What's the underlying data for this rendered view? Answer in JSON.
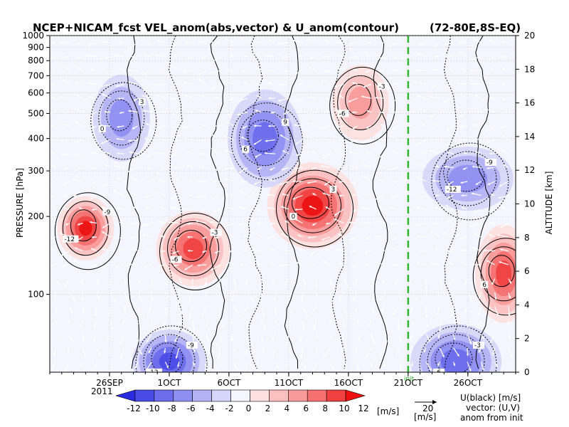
{
  "chart_data": {
    "type": "heatmap",
    "title": "NCEP+NICAM_fcst VEL_anom(abs,vector) & U_anom(contour)",
    "region": "(72-80E,8S-EQ)",
    "ylabel_left": "PRESSURE [hPa]",
    "ylabel_right": "ALTITUDE [km]",
    "y_left_scale": "log",
    "y_left_range": [
      1000,
      50
    ],
    "y_left_ticks": [
      100,
      200,
      300,
      400,
      500,
      600,
      700,
      800,
      900,
      1000
    ],
    "y_right_range": [
      0,
      20
    ],
    "y_right_ticks": [
      0,
      2,
      4,
      6,
      8,
      10,
      12,
      14,
      16,
      18,
      20
    ],
    "x_ticks": [
      "26SEP",
      "1OCT",
      "6OCT",
      "11OCT",
      "16OCT",
      "21OCT",
      "26OCT"
    ],
    "x_year": "2011",
    "x_range": [
      "2011-09-21",
      "2011-10-30"
    ],
    "init_marker": {
      "date": "2011-10-21",
      "label": "init",
      "color": "#22bb22"
    },
    "colorbar": {
      "levels": [
        -12,
        -10,
        -8,
        -6,
        -4,
        -2,
        0,
        2,
        4,
        6,
        8,
        10,
        12
      ],
      "unit": "[m/s]",
      "colors": [
        "#2a2ae0",
        "#4a4ae6",
        "#6c6ced",
        "#8f8ff2",
        "#b3b3f6",
        "#d6d6fa",
        "#f5f5ff",
        "#fde0e0",
        "#fbc0c0",
        "#f89a9a",
        "#f57070",
        "#f04040",
        "#ec1010"
      ]
    },
    "vector_reference": {
      "value": "20",
      "unit": "[m/s]"
    },
    "legend_text": [
      "U(black) [m/s]",
      "vector: (U,V)",
      "anom from init"
    ],
    "contour_labels": [
      "-12",
      "-9",
      "-6",
      "-3",
      "0",
      "3",
      "6",
      "9"
    ],
    "anomaly_features": [
      {
        "name": "upper-positive-early",
        "date": "2011-09-24",
        "pressure": 180,
        "value": 12
      },
      {
        "name": "upper-positive-oct3",
        "date": "2011-10-03",
        "pressure": 150,
        "value": 10
      },
      {
        "name": "upper-positive-oct13",
        "date": "2011-10-13",
        "pressure": 220,
        "value": 12
      },
      {
        "name": "upper-positive-late",
        "date": "2011-10-29",
        "pressure": 120,
        "value": 10
      },
      {
        "name": "upper-negative-top",
        "date": "2011-10-01",
        "pressure": 55,
        "value": -10
      },
      {
        "name": "upper-negative-late",
        "date": "2011-10-25",
        "pressure": 55,
        "value": -8
      },
      {
        "name": "mid-negative-early",
        "date": "2011-09-27",
        "pressure": 480,
        "value": -6
      },
      {
        "name": "mid-negative-oct9",
        "date": "2011-10-09",
        "pressure": 400,
        "value": -8
      },
      {
        "name": "mid-negative-oct26",
        "date": "2011-10-26",
        "pressure": 280,
        "value": -5
      },
      {
        "name": "lower-positive-oct17",
        "date": "2011-10-17",
        "pressure": 550,
        "value": 6
      }
    ]
  }
}
